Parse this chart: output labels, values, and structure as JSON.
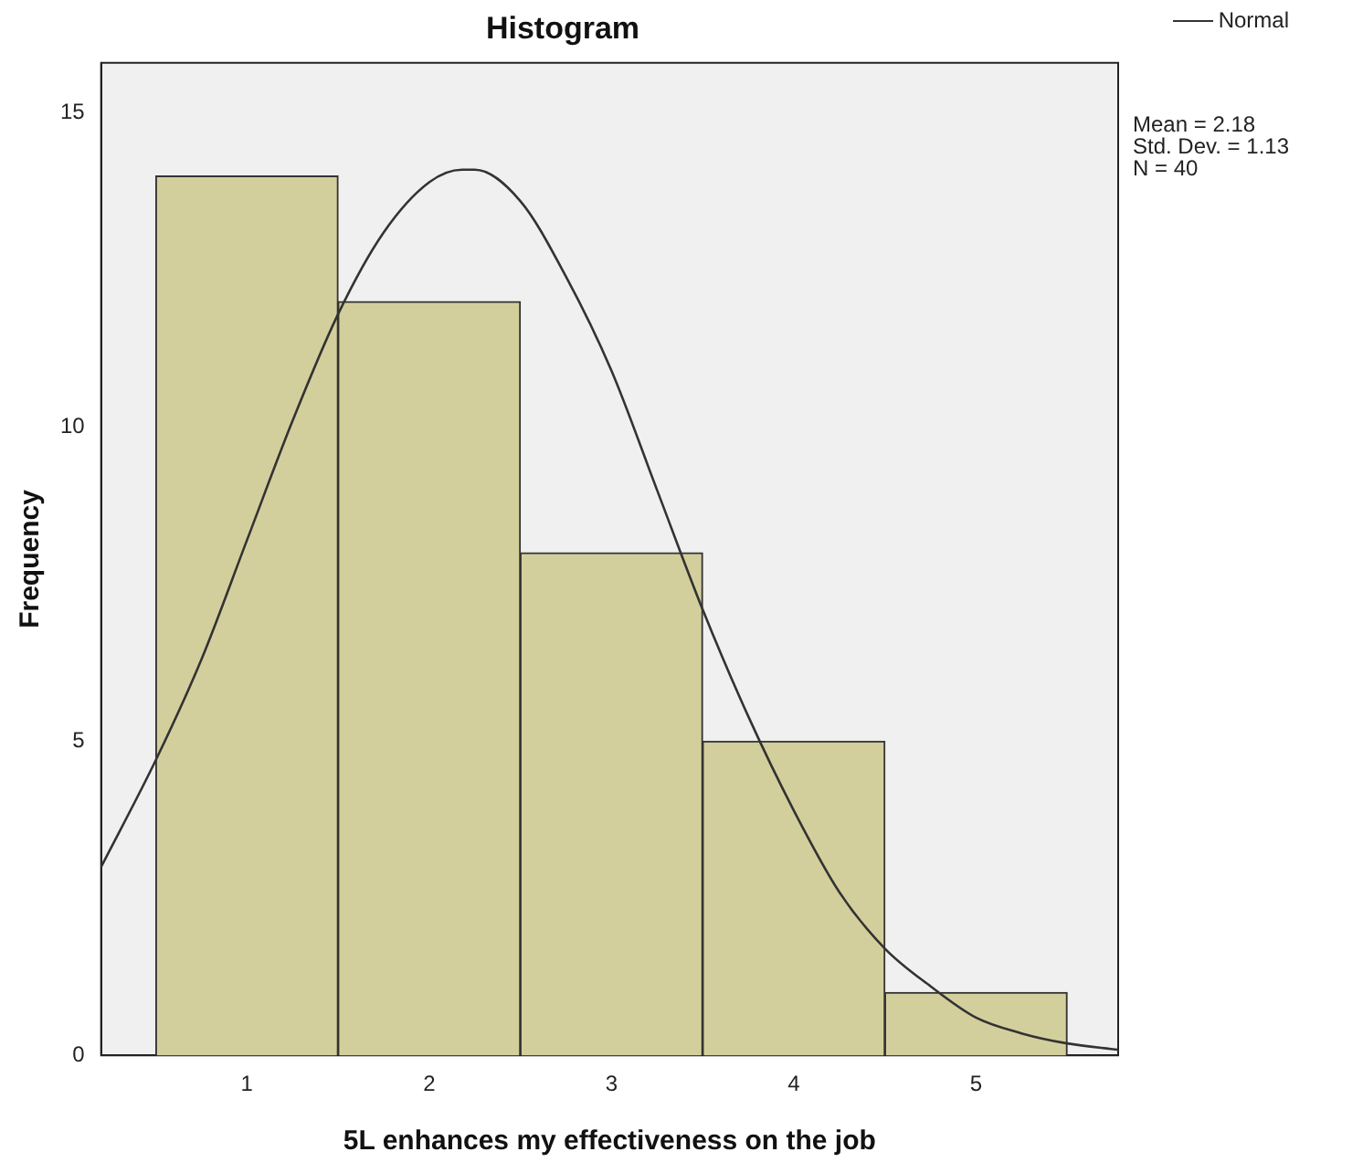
{
  "chart_data": {
    "type": "histogram",
    "title": "Histogram",
    "xlabel": "5L enhances my effectiveness on the job",
    "ylabel": "Frequency",
    "bins": [
      0.5,
      1.5,
      2.5,
      3.5,
      4.5,
      5.5
    ],
    "values": [
      14,
      12,
      8,
      5,
      1
    ],
    "color": "#d3cf9c",
    "series": [
      {
        "name": "Normal",
        "type": "line",
        "color": "#333333",
        "x": [
          0.2,
          0.5,
          0.75,
          1.0,
          1.25,
          1.5,
          1.75,
          2.0,
          2.18,
          2.25,
          2.5,
          2.75,
          3.0,
          3.25,
          3.5,
          3.75,
          4.0,
          4.25,
          4.5,
          4.75,
          5.0,
          5.25,
          5.5,
          5.78
        ],
        "values": [
          3.0,
          4.7,
          6.3,
          8.2,
          10.1,
          11.8,
          13.1,
          13.9,
          14.1,
          14.1,
          13.6,
          12.4,
          10.9,
          9.0,
          7.1,
          5.4,
          3.9,
          2.6,
          1.7,
          1.1,
          0.6,
          0.35,
          0.19,
          0.09
        ]
      }
    ],
    "xlim": [
      0.2,
      5.78
    ],
    "xticks": [
      1,
      2,
      3,
      4,
      5
    ],
    "ylim": [
      0,
      15.8
    ],
    "yticks": [
      0,
      5,
      10,
      15
    ],
    "grid": false,
    "legend": "top right",
    "marker": "none",
    "line_style": "solid",
    "annotations": [
      "Mean = 2.18",
      "Std. Dev. = 1.13",
      "N = 40"
    ]
  }
}
